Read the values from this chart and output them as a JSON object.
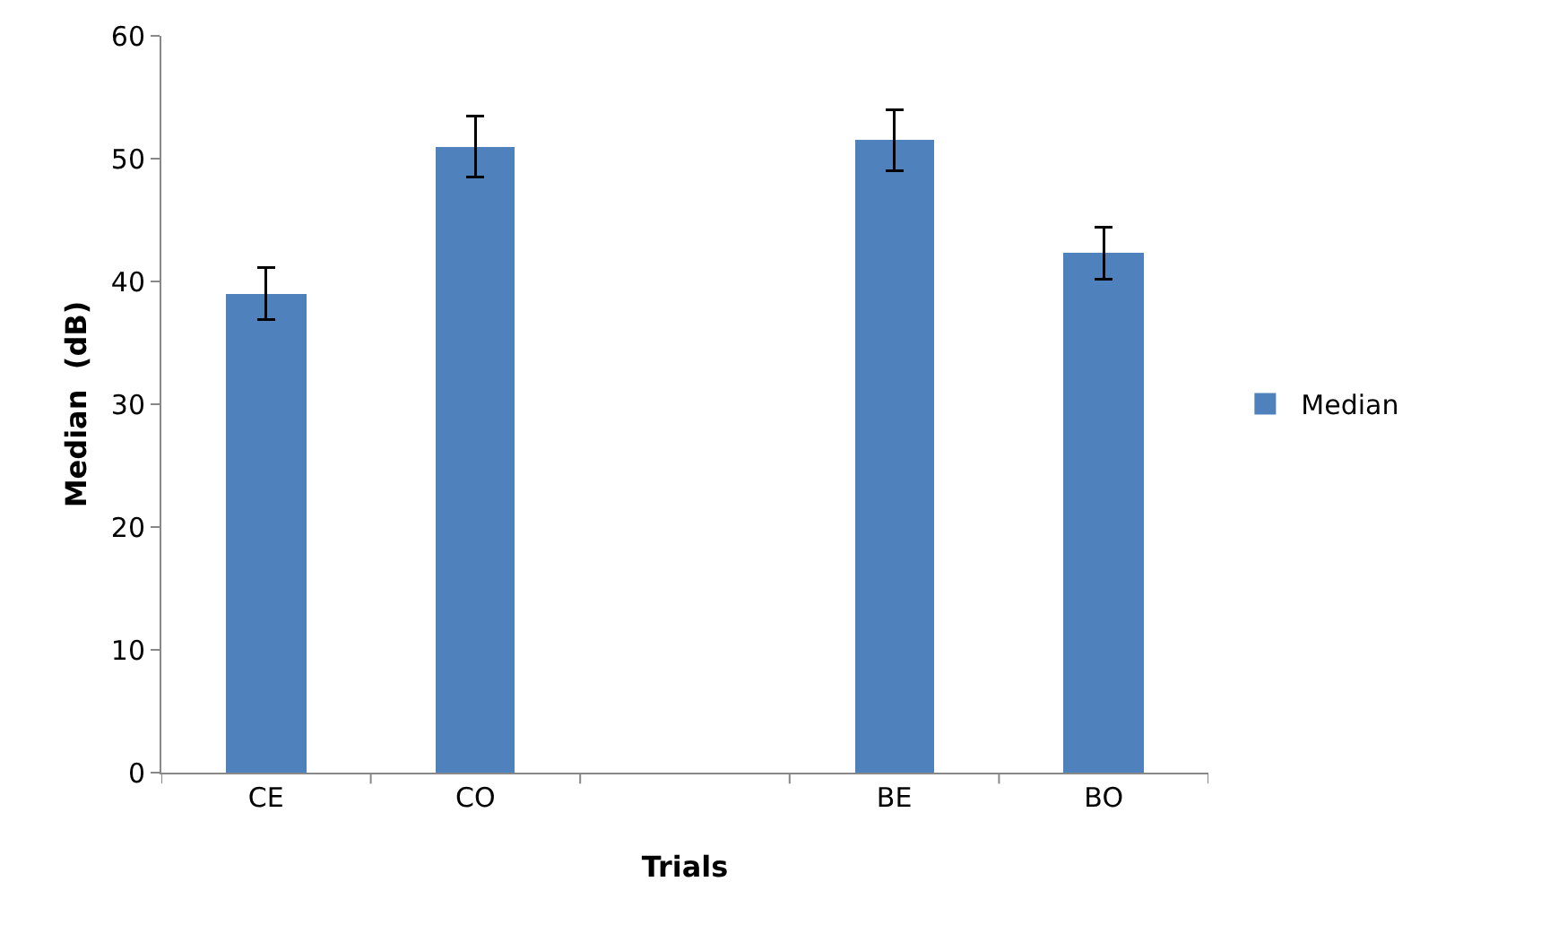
{
  "chart_data": {
    "type": "bar",
    "xlabel": "Trials",
    "ylabel": "Median  (dB)",
    "categories": [
      "CE",
      "CO",
      null,
      "BE",
      "BO"
    ],
    "series": [
      {
        "name": "Median",
        "color": "#4f81bd",
        "values": [
          39,
          51,
          null,
          51.5,
          42.3
        ],
        "errors": [
          2.1,
          2.5,
          null,
          2.5,
          2.1
        ]
      }
    ],
    "ylim": [
      0,
      60
    ],
    "yticks": [
      0,
      10,
      20,
      30,
      40,
      50,
      60
    ],
    "grid": false,
    "legend": "right"
  }
}
